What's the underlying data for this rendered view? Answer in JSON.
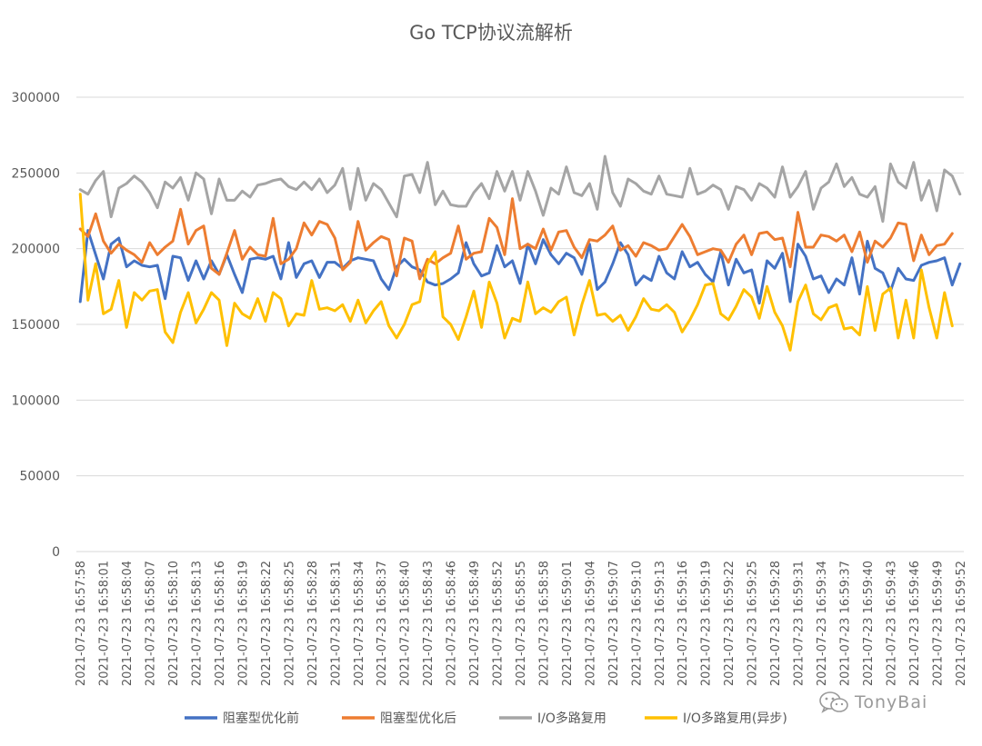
{
  "chart_data": {
    "type": "line",
    "title": "Go TCP协议流解析",
    "xlabel": "",
    "ylabel": "",
    "ylim": [
      0,
      300000
    ],
    "yticks": [
      0,
      50000,
      100000,
      150000,
      200000,
      250000,
      300000
    ],
    "grid": true,
    "legend_position": "bottom",
    "start_time": "2021-07-23 16:57:58",
    "x_tick_labels": [
      "2021-07-23 16:57:58",
      "2021-07-23 16:58:01",
      "2021-07-23 16:58:04",
      "2021-07-23 16:58:07",
      "2021-07-23 16:58:10",
      "2021-07-23 16:58:13",
      "2021-07-23 16:58:16",
      "2021-07-23 16:58:19",
      "2021-07-23 16:58:22",
      "2021-07-23 16:58:25",
      "2021-07-23 16:58:28",
      "2021-07-23 16:58:31",
      "2021-07-23 16:58:34",
      "2021-07-23 16:58:37",
      "2021-07-23 16:58:40",
      "2021-07-23 16:58:43",
      "2021-07-23 16:58:46",
      "2021-07-23 16:58:49",
      "2021-07-23 16:58:52",
      "2021-07-23 16:58:55",
      "2021-07-23 16:58:58",
      "2021-07-23 16:59:01",
      "2021-07-23 16:59:04",
      "2021-07-23 16:59:07",
      "2021-07-23 16:59:10",
      "2021-07-23 16:59:13",
      "2021-07-23 16:59:16",
      "2021-07-23 16:59:19",
      "2021-07-23 16:59:22",
      "2021-07-23 16:59:25",
      "2021-07-23 16:59:28",
      "2021-07-23 16:59:31",
      "2021-07-23 16:59:34",
      "2021-07-23 16:59:37",
      "2021-07-23 16:59:40",
      "2021-07-23 16:59:43",
      "2021-07-23 16:59:46",
      "2021-07-23 16:59:49",
      "2021-07-23 16:59:52"
    ],
    "series": [
      {
        "name": "阻塞型优化前",
        "color": "#4472C4",
        "values": [
          165000,
          212000,
          196000,
          180000,
          203000,
          207000,
          188000,
          192000,
          189000,
          188000,
          189000,
          167000,
          195000,
          194000,
          179000,
          192000,
          180000,
          192000,
          183000,
          196000,
          183000,
          171000,
          193000,
          194000,
          193000,
          195000,
          180000,
          204000,
          181000,
          190000,
          192000,
          181000,
          191000,
          191000,
          187000,
          192000,
          194000,
          193000,
          192000,
          180000,
          173000,
          188000,
          193000,
          188000,
          186000,
          178000,
          176000,
          177000,
          180000,
          184000,
          204000,
          190000,
          182000,
          184000,
          202000,
          188000,
          192000,
          177000,
          203000,
          190000,
          206000,
          196000,
          190000,
          197000,
          194000,
          183000,
          203000,
          173000,
          178000,
          190000,
          204000,
          196000,
          176000,
          182000,
          179000,
          195000,
          184000,
          180000,
          198000,
          188000,
          191000,
          183000,
          178000,
          198000,
          176000,
          193000,
          184000,
          186000,
          164000,
          192000,
          187000,
          197000,
          165000,
          203000,
          195000,
          180000,
          182000,
          171000,
          180000,
          176000,
          194000,
          170000,
          205000,
          187000,
          184000,
          172000,
          187000,
          180000,
          179000,
          189000,
          191000,
          192000,
          194000,
          176000,
          190000
        ]
      },
      {
        "name": "阻塞型优化后",
        "color": "#ED7D31",
        "values": [
          213000,
          208000,
          223000,
          205000,
          197000,
          203000,
          199000,
          196000,
          191000,
          204000,
          196000,
          201000,
          205000,
          226000,
          203000,
          212000,
          215000,
          187000,
          183000,
          197000,
          212000,
          193000,
          201000,
          196000,
          195000,
          220000,
          190000,
          193000,
          200000,
          217000,
          209000,
          218000,
          216000,
          207000,
          186000,
          191000,
          218000,
          199000,
          204000,
          208000,
          206000,
          182000,
          207000,
          205000,
          180000,
          193000,
          190000,
          194000,
          197000,
          215000,
          193000,
          197000,
          198000,
          220000,
          214000,
          196000,
          233000,
          200000,
          203000,
          200000,
          213000,
          199000,
          211000,
          212000,
          201000,
          194000,
          206000,
          205000,
          209000,
          215000,
          199000,
          202000,
          195000,
          204000,
          202000,
          199000,
          200000,
          208000,
          216000,
          208000,
          196000,
          198000,
          200000,
          199000,
          191000,
          203000,
          209000,
          196000,
          210000,
          211000,
          206000,
          207000,
          188000,
          224000,
          201000,
          201000,
          209000,
          208000,
          205000,
          209000,
          198000,
          211000,
          191000,
          205000,
          201000,
          207000,
          217000,
          216000,
          192000,
          209000,
          196000,
          202000,
          203000,
          210000
        ]
      },
      {
        "name": "I/O多路复用",
        "color": "#A5A5A5",
        "values": [
          239000,
          236000,
          245000,
          251000,
          221000,
          240000,
          243000,
          248000,
          244000,
          237000,
          227000,
          244000,
          240000,
          247000,
          232000,
          250000,
          246000,
          223000,
          246000,
          232000,
          232000,
          238000,
          234000,
          242000,
          243000,
          245000,
          246000,
          241000,
          239000,
          244000,
          239000,
          246000,
          237000,
          242000,
          253000,
          226000,
          253000,
          232000,
          243000,
          239000,
          230000,
          221000,
          248000,
          249000,
          237000,
          257000,
          229000,
          238000,
          229000,
          228000,
          228000,
          237000,
          243000,
          233000,
          251000,
          238000,
          251000,
          232000,
          251000,
          238000,
          222000,
          240000,
          236000,
          254000,
          237000,
          235000,
          243000,
          226000,
          261000,
          237000,
          228000,
          246000,
          243000,
          238000,
          236000,
          248000,
          236000,
          235000,
          234000,
          253000,
          236000,
          238000,
          242000,
          239000,
          226000,
          241000,
          239000,
          232000,
          243000,
          240000,
          234000,
          254000,
          234000,
          241000,
          251000,
          226000,
          240000,
          244000,
          256000,
          241000,
          247000,
          236000,
          234000,
          241000,
          218000,
          256000,
          244000,
          240000,
          257000,
          232000,
          245000,
          225000,
          252000,
          248000,
          236000
        ]
      },
      {
        "name": "I/O多路复用(异步)",
        "color": "#FFC000",
        "values": [
          236000,
          166000,
          190000,
          157000,
          160000,
          179000,
          148000,
          171000,
          166000,
          172000,
          173000,
          145000,
          138000,
          158000,
          171000,
          151000,
          160000,
          171000,
          166000,
          136000,
          164000,
          157000,
          154000,
          167000,
          152000,
          171000,
          167000,
          149000,
          157000,
          156000,
          179000,
          160000,
          161000,
          159000,
          163000,
          152000,
          166000,
          151000,
          159000,
          165000,
          149000,
          141000,
          150000,
          163000,
          165000,
          190000,
          198000,
          155000,
          150000,
          140000,
          155000,
          172000,
          148000,
          178000,
          164000,
          141000,
          154000,
          152000,
          178000,
          157000,
          161000,
          158000,
          165000,
          168000,
          143000,
          163000,
          179000,
          156000,
          157000,
          152000,
          156000,
          146000,
          155000,
          167000,
          160000,
          159000,
          163000,
          158000,
          145000,
          153000,
          163000,
          176000,
          177000,
          157000,
          153000,
          162000,
          173000,
          168000,
          154000,
          175000,
          158000,
          149000,
          133000,
          165000,
          176000,
          157000,
          153000,
          161000,
          163000,
          147000,
          148000,
          143000,
          175000,
          146000,
          170000,
          174000,
          141000,
          166000,
          141000,
          186000,
          161000,
          141000,
          171000,
          149000
        ]
      }
    ]
  },
  "watermark": {
    "text": "TonyBai",
    "icon": "wechat-icon"
  }
}
